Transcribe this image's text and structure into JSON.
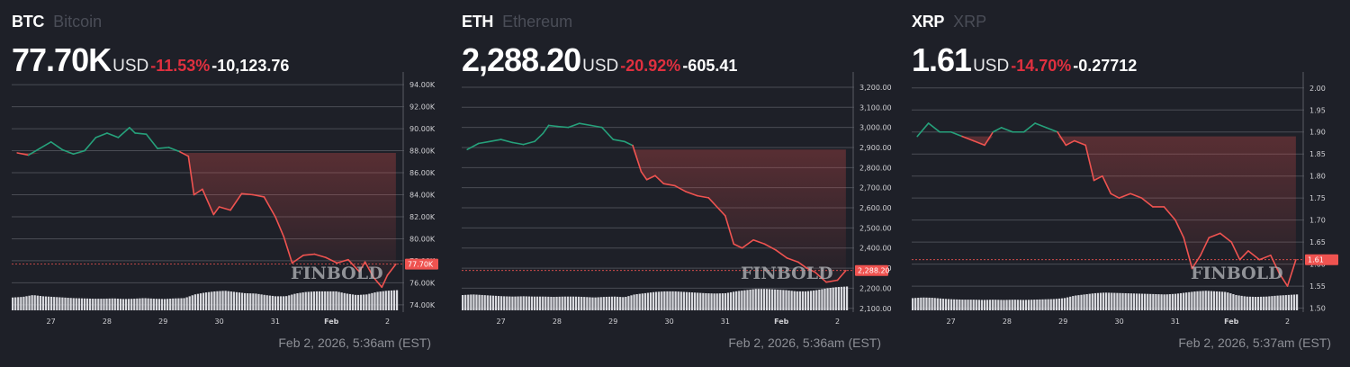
{
  "panels": [
    {
      "symbol": "BTC",
      "name": "Bitcoin",
      "price": "77.70K",
      "currency": "USD",
      "change_pct": "-11.53%",
      "change_abs": "-10,123.76",
      "timestamp": "Feb 2, 2026, 5:36am (EST)",
      "price_label": "77.70K",
      "watermark": "FINBOLD"
    },
    {
      "symbol": "ETH",
      "name": "Ethereum",
      "price": "2,288.20",
      "currency": "USD",
      "change_pct": "-20.92%",
      "change_abs": "-605.41",
      "timestamp": "Feb 2, 2026, 5:36am (EST)",
      "price_label": "2,288.20",
      "watermark": "FINBOLD"
    },
    {
      "symbol": "XRP",
      "name": "XRP",
      "price": "1.61",
      "currency": "USD",
      "change_pct": "-14.70%",
      "change_abs": "-0.27712",
      "timestamp": "Feb 2, 2026, 5:37am (EST)",
      "price_label": "1.61",
      "watermark": "FINBOLD"
    }
  ],
  "colors": {
    "background": "#1e2028",
    "up_line": "#26a17b",
    "down_line": "#ef5350",
    "negative_text": "#e0303f",
    "grid": "#4a4c54",
    "axis_text": "#d0d0d4",
    "price_label_bg": "#ef5350",
    "volume": "#d8d9de"
  },
  "chart_data": [
    {
      "type": "line",
      "title": "BTC Bitcoin",
      "xlabel": "",
      "ylabel": "USD",
      "x_ticks": [
        "27",
        "28",
        "29",
        "30",
        "31",
        "Feb",
        "2"
      ],
      "y_ticks": [
        "94.00K",
        "92.00K",
        "90.00K",
        "88.00K",
        "86.00K",
        "84.00K",
        "82.00K",
        "80.00K",
        "78.00K",
        "76.00K",
        "74.00K"
      ],
      "ylim": [
        73500,
        94500
      ],
      "baseline": 87800,
      "last_value": 77700,
      "grid": true,
      "legend": "none",
      "x": [
        26.4,
        26.6,
        26.8,
        27.0,
        27.2,
        27.4,
        27.6,
        27.8,
        28.0,
        28.2,
        28.4,
        28.5,
        28.7,
        28.9,
        29.1,
        29.3,
        29.45,
        29.55,
        29.7,
        29.9,
        30.0,
        30.2,
        30.4,
        30.6,
        30.8,
        31.0,
        31.15,
        31.3,
        31.5,
        31.7,
        31.9,
        32.1,
        32.3,
        32.5,
        32.6,
        32.75,
        32.9,
        33.0,
        33.15
      ],
      "values": [
        87800,
        87600,
        88200,
        88800,
        88100,
        87700,
        88000,
        89200,
        89600,
        89200,
        90100,
        89600,
        89500,
        88200,
        88300,
        87900,
        87500,
        84000,
        84500,
        82200,
        82900,
        82600,
        84100,
        84000,
        83800,
        82000,
        80200,
        77800,
        78500,
        78600,
        78300,
        77800,
        78100,
        77000,
        77900,
        76500,
        75600,
        76700,
        77700
      ],
      "volume": [
        0.42,
        0.44,
        0.5,
        0.46,
        0.44,
        0.42,
        0.4,
        0.39,
        0.38,
        0.38,
        0.39,
        0.37,
        0.38,
        0.4,
        0.38,
        0.37,
        0.39,
        0.4,
        0.52,
        0.58,
        0.62,
        0.64,
        0.6,
        0.56,
        0.55,
        0.5,
        0.46,
        0.46,
        0.55,
        0.6,
        0.62,
        0.62,
        0.62,
        0.55,
        0.5,
        0.52,
        0.6,
        0.64,
        0.66
      ]
    },
    {
      "type": "line",
      "title": "ETH Ethereum",
      "xlabel": "",
      "ylabel": "USD",
      "x_ticks": [
        "27",
        "28",
        "29",
        "30",
        "31",
        "Feb",
        "2"
      ],
      "y_ticks": [
        "3,200.00",
        "3,100.00",
        "3,000.00",
        "2,900.00",
        "2,800.00",
        "2,700.00",
        "2,600.00",
        "2,500.00",
        "2,400.00",
        "2,300.00",
        "2,200.00",
        "2,100.00"
      ],
      "ylim": [
        2090,
        3240
      ],
      "baseline": 2890,
      "last_value": 2288.2,
      "grid": true,
      "legend": "none",
      "x": [
        26.4,
        26.6,
        26.8,
        27.0,
        27.2,
        27.4,
        27.6,
        27.75,
        27.85,
        28.0,
        28.2,
        28.4,
        28.6,
        28.8,
        29.0,
        29.2,
        29.35,
        29.5,
        29.6,
        29.75,
        29.9,
        30.1,
        30.3,
        30.5,
        30.7,
        30.9,
        31.0,
        31.15,
        31.3,
        31.5,
        31.7,
        31.9,
        32.1,
        32.3,
        32.45,
        32.6,
        32.8,
        33.0,
        33.15
      ],
      "values": [
        2890,
        2920,
        2930,
        2940,
        2925,
        2915,
        2930,
        2970,
        3010,
        3005,
        3000,
        3020,
        3010,
        3000,
        2940,
        2930,
        2910,
        2780,
        2740,
        2760,
        2720,
        2710,
        2680,
        2660,
        2650,
        2590,
        2560,
        2420,
        2400,
        2440,
        2420,
        2390,
        2350,
        2330,
        2300,
        2280,
        2230,
        2240,
        2288
      ],
      "volume": [
        0.5,
        0.52,
        0.5,
        0.48,
        0.46,
        0.45,
        0.46,
        0.45,
        0.45,
        0.44,
        0.45,
        0.45,
        0.44,
        0.42,
        0.44,
        0.45,
        0.43,
        0.52,
        0.56,
        0.6,
        0.62,
        0.62,
        0.6,
        0.58,
        0.56,
        0.55,
        0.56,
        0.62,
        0.66,
        0.7,
        0.7,
        0.68,
        0.66,
        0.62,
        0.62,
        0.66,
        0.72,
        0.76,
        0.78
      ]
    },
    {
      "type": "line",
      "title": "XRP XRP",
      "xlabel": "",
      "ylabel": "USD",
      "x_ticks": [
        "27",
        "28",
        "29",
        "30",
        "31",
        "Feb",
        "2"
      ],
      "y_ticks": [
        "2.00",
        "1.95",
        "1.90",
        "1.85",
        "1.80",
        "1.75",
        "1.70",
        "1.65",
        "1.60",
        "1.55",
        "1.50"
      ],
      "ylim": [
        1.495,
        2.02
      ],
      "baseline": 1.89,
      "last_value": 1.61,
      "grid": true,
      "legend": "none",
      "x": [
        26.4,
        26.6,
        26.8,
        27.0,
        27.2,
        27.4,
        27.6,
        27.75,
        27.9,
        28.1,
        28.3,
        28.5,
        28.7,
        28.9,
        29.05,
        29.2,
        29.4,
        29.55,
        29.7,
        29.85,
        30.0,
        30.2,
        30.4,
        30.6,
        30.8,
        31.0,
        31.15,
        31.3,
        31.45,
        31.6,
        31.8,
        32.0,
        32.15,
        32.3,
        32.5,
        32.7,
        32.85,
        33.0,
        33.15
      ],
      "values": [
        1.89,
        1.92,
        1.9,
        1.9,
        1.89,
        1.88,
        1.87,
        1.9,
        1.91,
        1.9,
        1.9,
        1.92,
        1.91,
        1.9,
        1.87,
        1.88,
        1.87,
        1.79,
        1.8,
        1.76,
        1.75,
        1.76,
        1.75,
        1.73,
        1.73,
        1.7,
        1.66,
        1.59,
        1.62,
        1.66,
        1.67,
        1.65,
        1.61,
        1.63,
        1.61,
        1.62,
        1.58,
        1.55,
        1.61
      ],
      "volume": [
        0.4,
        0.42,
        0.41,
        0.38,
        0.36,
        0.35,
        0.35,
        0.34,
        0.35,
        0.34,
        0.35,
        0.34,
        0.35,
        0.36,
        0.37,
        0.4,
        0.48,
        0.52,
        0.56,
        0.58,
        0.57,
        0.56,
        0.55,
        0.54,
        0.53,
        0.52,
        0.54,
        0.58,
        0.62,
        0.64,
        0.62,
        0.6,
        0.5,
        0.45,
        0.44,
        0.45,
        0.48,
        0.5,
        0.52
      ]
    }
  ]
}
